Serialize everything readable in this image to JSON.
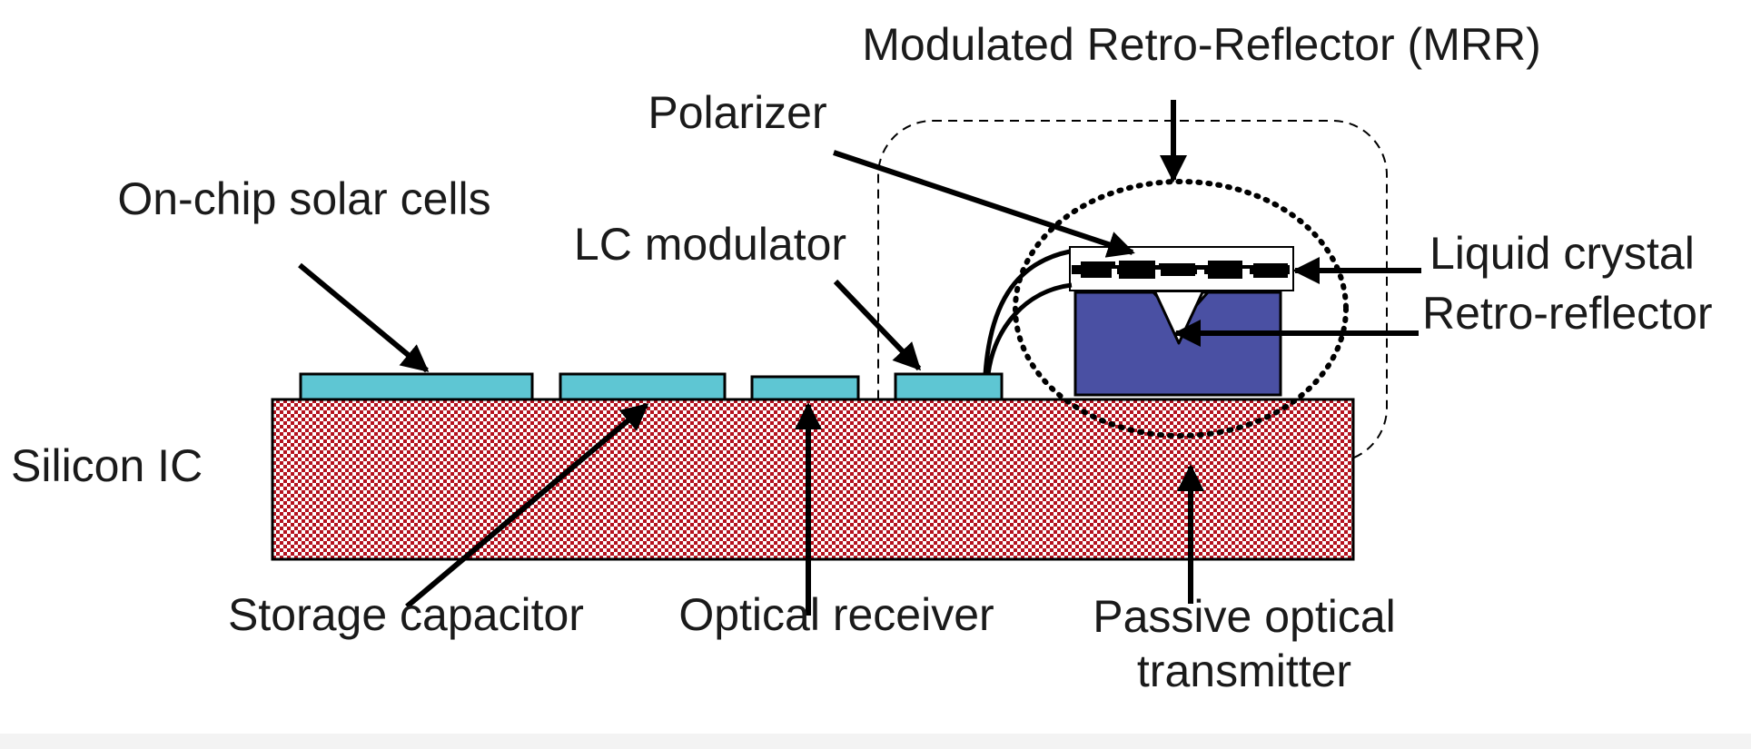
{
  "labels": {
    "mrr": "Modulated Retro-Reflector (MRR)",
    "polarizer": "Polarizer",
    "solar_cells": "On-chip solar cells",
    "lc_modulator": "LC modulator",
    "liquid_crystal": "Liquid crystal",
    "retro_reflector": "Retro-reflector",
    "silicon_ic": "Silicon IC",
    "storage_capacitor": "Storage capacitor",
    "optical_receiver": "Optical receiver",
    "passive_tx_line1": "Passive optical",
    "passive_tx_line2": "transmitter"
  },
  "colors": {
    "substrate_red": "#b4121e",
    "substrate_light": "#ffffff",
    "pad_cyan": "#5ec6d3",
    "reflector_blue": "#4a50a3",
    "ink": "#000000"
  }
}
